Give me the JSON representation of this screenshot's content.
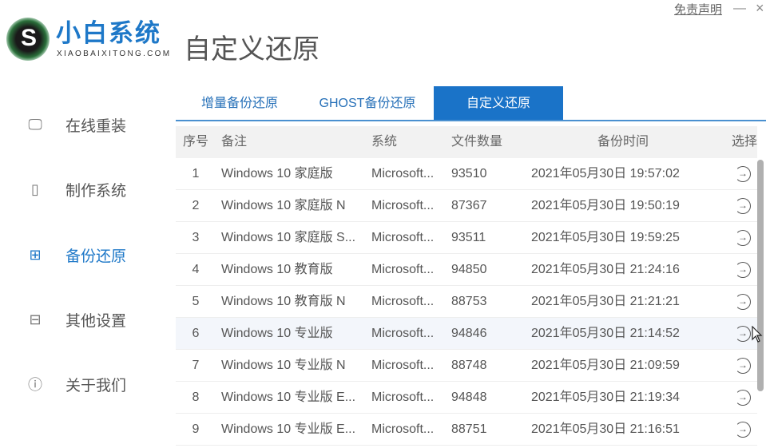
{
  "app": {
    "brand": "小白系统",
    "brand_sub": "XIAOBAIXITONG.COM",
    "page_title": "自定义还原",
    "disclaimer": "免责声明",
    "minimize": "—",
    "close": "×"
  },
  "sidebar": {
    "items": [
      {
        "label": "在线重装",
        "icon": "monitor-icon"
      },
      {
        "label": "制作系统",
        "icon": "usb-icon"
      },
      {
        "label": "备份还原",
        "icon": "backup-icon",
        "active": true
      },
      {
        "label": "其他设置",
        "icon": "toolbox-icon"
      },
      {
        "label": "关于我们",
        "icon": "info-icon"
      }
    ]
  },
  "tabs": [
    {
      "label": "增量备份还原"
    },
    {
      "label": "GHOST备份还原"
    },
    {
      "label": "自定义还原",
      "active": true
    }
  ],
  "table": {
    "headers": [
      "序号",
      "备注",
      "系统",
      "文件数量",
      "备份时间",
      "选择"
    ],
    "rows": [
      [
        "1",
        "Windows 10 家庭版",
        "Microsoft...",
        "93510",
        "2021年05月30日 19:57:02"
      ],
      [
        "2",
        "Windows 10 家庭版 N",
        "Microsoft...",
        "87367",
        "2021年05月30日 19:50:19"
      ],
      [
        "3",
        "Windows 10 家庭版 S...",
        "Microsoft...",
        "93511",
        "2021年05月30日 19:59:25"
      ],
      [
        "4",
        "Windows 10 教育版",
        "Microsoft...",
        "94850",
        "2021年05月30日 21:24:16"
      ],
      [
        "5",
        "Windows 10 教育版 N",
        "Microsoft...",
        "88753",
        "2021年05月30日 21:21:21"
      ],
      [
        "6",
        "Windows 10 专业版",
        "Microsoft...",
        "94846",
        "2021年05月30日 21:14:52"
      ],
      [
        "7",
        "Windows 10 专业版 N",
        "Microsoft...",
        "88748",
        "2021年05月30日 21:09:59"
      ],
      [
        "8",
        "Windows 10 专业版 E...",
        "Microsoft...",
        "94848",
        "2021年05月30日 21:19:34"
      ],
      [
        "9",
        "Windows 10 专业版 E...",
        "Microsoft...",
        "88751",
        "2021年05月30日 21:16:51"
      ]
    ],
    "highlighted_row": 6
  },
  "colors": {
    "accent": "#1a73c8",
    "brand": "#1e78c8"
  }
}
